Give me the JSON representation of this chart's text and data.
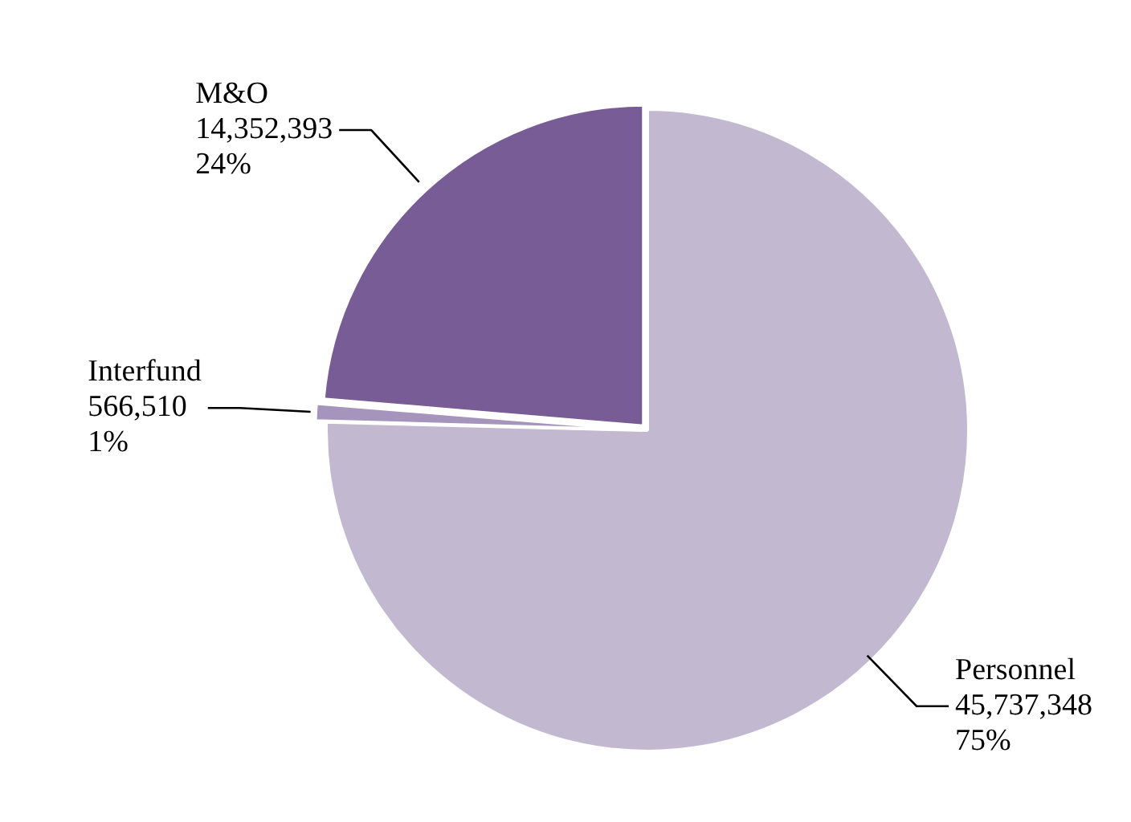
{
  "chart_data": {
    "type": "pie",
    "categories": [
      "Personnel",
      "Interfund",
      "M&O"
    ],
    "values": [
      45737348,
      566510,
      14352393
    ],
    "colors": [
      "#c2b8d0",
      "#a594bb",
      "#775c96"
    ],
    "value_labels": [
      "45,737,348\n75%",
      "566,510\n1%",
      "14,352,393\n24%"
    ],
    "legend": false
  }
}
